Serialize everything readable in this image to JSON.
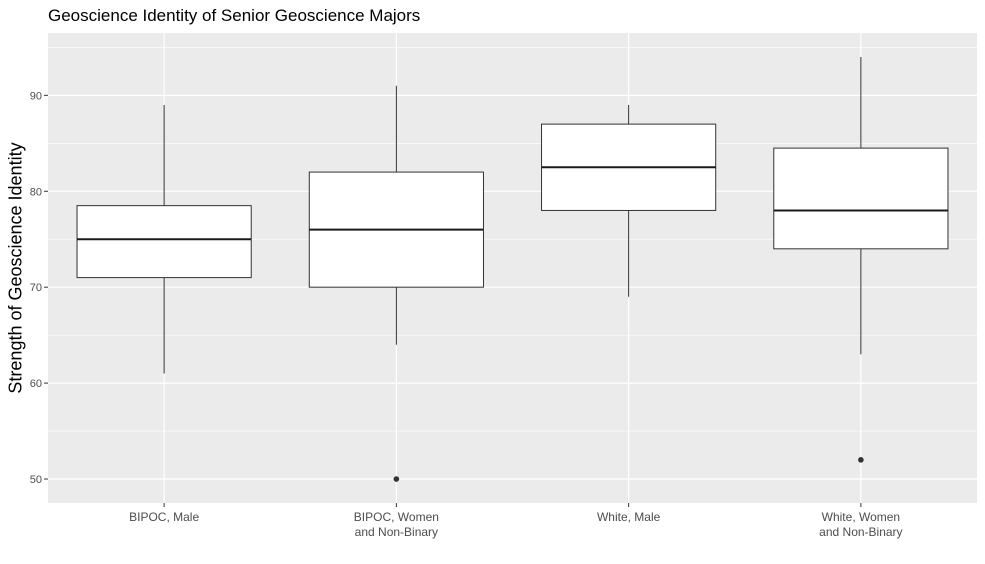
{
  "chart_data": {
    "type": "box",
    "title": "Geoscience Identity of Senior Geoscience Majors",
    "xlabel": "",
    "ylabel": "Strength of Geoscience Identity",
    "ylim": [
      47.5,
      96.5
    ],
    "yticks": [
      50,
      60,
      70,
      80,
      90
    ],
    "grid": true,
    "categories": [
      {
        "label": [
          "BIPOC, Male"
        ],
        "whisker_low": 61,
        "q1": 71,
        "median": 75,
        "q3": 78.5,
        "whisker_high": 89,
        "outliers": []
      },
      {
        "label": [
          "BIPOC, Women",
          "and Non-Binary"
        ],
        "whisker_low": 64,
        "q1": 70,
        "median": 76,
        "q3": 82,
        "whisker_high": 91,
        "outliers": [
          50
        ]
      },
      {
        "label": [
          "White, Male"
        ],
        "whisker_low": 69,
        "q1": 78,
        "median": 82.5,
        "q3": 87,
        "whisker_high": 89,
        "outliers": []
      },
      {
        "label": [
          "White, Women",
          "and Non-Binary"
        ],
        "whisker_low": 63,
        "q1": 74,
        "median": 78,
        "q3": 84.5,
        "whisker_high": 94,
        "outliers": [
          52
        ]
      }
    ]
  }
}
